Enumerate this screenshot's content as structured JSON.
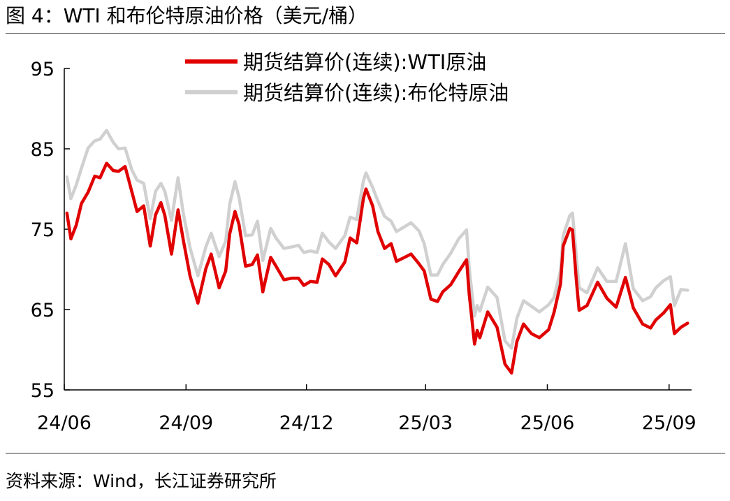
{
  "header": {
    "title": "图 4：WTI 和布伦特原油价格（美元/桶）"
  },
  "footer": {
    "source": "资料来源：Wind，长江证券研究所"
  },
  "chart_data": {
    "type": "line",
    "title": "",
    "xlabel": "",
    "ylabel": "",
    "ylim": [
      55,
      95
    ],
    "yticks": [
      55,
      65,
      75,
      85,
      95
    ],
    "xlim": [
      "2024-06-01",
      "2025-09-18"
    ],
    "xticks": [
      {
        "date": "2024-06-01",
        "label": "24/06"
      },
      {
        "date": "2024-09-01",
        "label": "24/09"
      },
      {
        "date": "2024-12-01",
        "label": "24/12"
      },
      {
        "date": "2025-03-01",
        "label": "25/03"
      },
      {
        "date": "2025-06-01",
        "label": "25/06"
      },
      {
        "date": "2025-09-01",
        "label": "25/09"
      }
    ],
    "grid": false,
    "legend_position": "top-center",
    "series": [
      {
        "name": "期货结算价(连续):WTI原油",
        "color": "#e00000",
        "points": [
          [
            "2024-06-03",
            77.0
          ],
          [
            "2024-06-06",
            73.8
          ],
          [
            "2024-06-10",
            75.5
          ],
          [
            "2024-06-14",
            78.2
          ],
          [
            "2024-06-19",
            79.6
          ],
          [
            "2024-06-24",
            81.6
          ],
          [
            "2024-06-28",
            81.4
          ],
          [
            "2024-07-03",
            83.2
          ],
          [
            "2024-07-08",
            82.3
          ],
          [
            "2024-07-12",
            82.2
          ],
          [
            "2024-07-17",
            82.8
          ],
          [
            "2024-07-22",
            79.7
          ],
          [
            "2024-07-26",
            77.2
          ],
          [
            "2024-07-31",
            77.9
          ],
          [
            "2024-08-05",
            72.9
          ],
          [
            "2024-08-09",
            76.8
          ],
          [
            "2024-08-13",
            78.3
          ],
          [
            "2024-08-16",
            76.7
          ],
          [
            "2024-08-21",
            71.9
          ],
          [
            "2024-08-26",
            77.4
          ],
          [
            "2024-08-30",
            73.6
          ],
          [
            "2024-09-04",
            69.2
          ],
          [
            "2024-09-10",
            65.8
          ],
          [
            "2024-09-16",
            70.1
          ],
          [
            "2024-09-20",
            71.9
          ],
          [
            "2024-09-26",
            67.7
          ],
          [
            "2024-10-01",
            69.8
          ],
          [
            "2024-10-04",
            74.4
          ],
          [
            "2024-10-08",
            77.2
          ],
          [
            "2024-10-11",
            75.6
          ],
          [
            "2024-10-16",
            70.4
          ],
          [
            "2024-10-21",
            70.6
          ],
          [
            "2024-10-25",
            71.8
          ],
          [
            "2024-10-29",
            67.2
          ],
          [
            "2024-11-04",
            71.5
          ],
          [
            "2024-11-08",
            70.4
          ],
          [
            "2024-11-14",
            68.7
          ],
          [
            "2024-11-20",
            68.9
          ],
          [
            "2024-11-25",
            68.9
          ],
          [
            "2024-11-29",
            68.0
          ],
          [
            "2024-12-04",
            68.5
          ],
          [
            "2024-12-09",
            68.4
          ],
          [
            "2024-12-13",
            71.3
          ],
          [
            "2024-12-18",
            70.6
          ],
          [
            "2024-12-23",
            69.2
          ],
          [
            "2024-12-30",
            70.9
          ],
          [
            "2025-01-03",
            73.9
          ],
          [
            "2025-01-08",
            73.3
          ],
          [
            "2025-01-13",
            78.8
          ],
          [
            "2025-01-15",
            80.0
          ],
          [
            "2025-01-20",
            77.9
          ],
          [
            "2025-01-24",
            74.7
          ],
          [
            "2025-01-29",
            72.6
          ],
          [
            "2025-02-03",
            73.2
          ],
          [
            "2025-02-07",
            71.0
          ],
          [
            "2025-02-12",
            71.4
          ],
          [
            "2025-02-18",
            71.9
          ],
          [
            "2025-02-24",
            70.7
          ],
          [
            "2025-02-28",
            69.8
          ],
          [
            "2025-03-05",
            66.3
          ],
          [
            "2025-03-10",
            66.0
          ],
          [
            "2025-03-14",
            67.2
          ],
          [
            "2025-03-20",
            68.1
          ],
          [
            "2025-03-26",
            69.7
          ],
          [
            "2025-04-01",
            71.2
          ],
          [
            "2025-04-03",
            66.9
          ],
          [
            "2025-04-07",
            60.7
          ],
          [
            "2025-04-09",
            62.4
          ],
          [
            "2025-04-11",
            61.5
          ],
          [
            "2025-04-17",
            64.7
          ],
          [
            "2025-04-24",
            62.8
          ],
          [
            "2025-04-30",
            58.2
          ],
          [
            "2025-05-05",
            57.1
          ],
          [
            "2025-05-09",
            61.0
          ],
          [
            "2025-05-14",
            63.2
          ],
          [
            "2025-05-20",
            62.0
          ],
          [
            "2025-05-26",
            61.5
          ],
          [
            "2025-06-02",
            62.5
          ],
          [
            "2025-06-06",
            64.6
          ],
          [
            "2025-06-11",
            68.2
          ],
          [
            "2025-06-13",
            72.9
          ],
          [
            "2025-06-18",
            75.1
          ],
          [
            "2025-06-20",
            74.9
          ],
          [
            "2025-06-23",
            68.5
          ],
          [
            "2025-06-25",
            64.9
          ],
          [
            "2025-07-01",
            65.5
          ],
          [
            "2025-07-09",
            68.4
          ],
          [
            "2025-07-16",
            66.4
          ],
          [
            "2025-07-23",
            65.3
          ],
          [
            "2025-07-30",
            69.0
          ],
          [
            "2025-08-05",
            65.2
          ],
          [
            "2025-08-12",
            63.2
          ],
          [
            "2025-08-18",
            62.7
          ],
          [
            "2025-08-22",
            63.7
          ],
          [
            "2025-08-28",
            64.6
          ],
          [
            "2025-09-02",
            65.6
          ],
          [
            "2025-09-05",
            62.0
          ],
          [
            "2025-09-10",
            62.8
          ],
          [
            "2025-09-15",
            63.3
          ]
        ]
      },
      {
        "name": "期货结算价(连续):布伦特原油",
        "color": "#d0d0d0",
        "points": [
          [
            "2024-06-03",
            81.5
          ],
          [
            "2024-06-06",
            78.8
          ],
          [
            "2024-06-10",
            80.5
          ],
          [
            "2024-06-14",
            82.6
          ],
          [
            "2024-06-19",
            85.1
          ],
          [
            "2024-06-24",
            86.0
          ],
          [
            "2024-06-28",
            86.2
          ],
          [
            "2024-07-03",
            87.3
          ],
          [
            "2024-07-08",
            85.8
          ],
          [
            "2024-07-12",
            85.0
          ],
          [
            "2024-07-17",
            85.1
          ],
          [
            "2024-07-22",
            82.4
          ],
          [
            "2024-07-26",
            81.1
          ],
          [
            "2024-07-31",
            80.7
          ],
          [
            "2024-08-05",
            76.3
          ],
          [
            "2024-08-09",
            79.7
          ],
          [
            "2024-08-13",
            80.7
          ],
          [
            "2024-08-16",
            79.7
          ],
          [
            "2024-08-21",
            76.1
          ],
          [
            "2024-08-26",
            81.4
          ],
          [
            "2024-08-30",
            76.9
          ],
          [
            "2024-09-04",
            72.7
          ],
          [
            "2024-09-10",
            69.2
          ],
          [
            "2024-09-16",
            72.8
          ],
          [
            "2024-09-20",
            74.5
          ],
          [
            "2024-09-26",
            71.6
          ],
          [
            "2024-10-01",
            73.5
          ],
          [
            "2024-10-04",
            78.1
          ],
          [
            "2024-10-08",
            80.9
          ],
          [
            "2024-10-11",
            79.0
          ],
          [
            "2024-10-16",
            74.2
          ],
          [
            "2024-10-21",
            74.3
          ],
          [
            "2024-10-25",
            76.0
          ],
          [
            "2024-10-29",
            71.1
          ],
          [
            "2024-11-04",
            75.1
          ],
          [
            "2024-11-08",
            73.9
          ],
          [
            "2024-11-14",
            72.6
          ],
          [
            "2024-11-20",
            72.8
          ],
          [
            "2024-11-25",
            73.0
          ],
          [
            "2024-11-29",
            72.1
          ],
          [
            "2024-12-04",
            72.3
          ],
          [
            "2024-12-09",
            72.1
          ],
          [
            "2024-12-13",
            74.5
          ],
          [
            "2024-12-18",
            73.4
          ],
          [
            "2024-12-23",
            72.6
          ],
          [
            "2024-12-30",
            74.2
          ],
          [
            "2025-01-03",
            76.5
          ],
          [
            "2025-01-08",
            76.2
          ],
          [
            "2025-01-13",
            81.0
          ],
          [
            "2025-01-15",
            82.0
          ],
          [
            "2025-01-20",
            80.2
          ],
          [
            "2025-01-24",
            78.5
          ],
          [
            "2025-01-29",
            76.6
          ],
          [
            "2025-02-03",
            76.0
          ],
          [
            "2025-02-07",
            74.7
          ],
          [
            "2025-02-12",
            75.2
          ],
          [
            "2025-02-18",
            75.8
          ],
          [
            "2025-02-24",
            74.8
          ],
          [
            "2025-02-28",
            73.2
          ],
          [
            "2025-03-05",
            69.3
          ],
          [
            "2025-03-10",
            69.3
          ],
          [
            "2025-03-14",
            70.6
          ],
          [
            "2025-03-20",
            72.0
          ],
          [
            "2025-03-26",
            73.8
          ],
          [
            "2025-04-01",
            74.9
          ],
          [
            "2025-04-03",
            70.1
          ],
          [
            "2025-04-07",
            64.2
          ],
          [
            "2025-04-09",
            65.5
          ],
          [
            "2025-04-11",
            64.8
          ],
          [
            "2025-04-17",
            67.8
          ],
          [
            "2025-04-24",
            66.5
          ],
          [
            "2025-04-30",
            61.1
          ],
          [
            "2025-05-05",
            60.2
          ],
          [
            "2025-05-09",
            63.9
          ],
          [
            "2025-05-14",
            66.1
          ],
          [
            "2025-05-20",
            65.4
          ],
          [
            "2025-05-26",
            64.7
          ],
          [
            "2025-06-02",
            65.6
          ],
          [
            "2025-06-06",
            66.5
          ],
          [
            "2025-06-11",
            69.8
          ],
          [
            "2025-06-13",
            74.2
          ],
          [
            "2025-06-18",
            76.7
          ],
          [
            "2025-06-20",
            77.0
          ],
          [
            "2025-06-23",
            71.5
          ],
          [
            "2025-06-25",
            67.7
          ],
          [
            "2025-07-01",
            67.1
          ],
          [
            "2025-07-09",
            70.2
          ],
          [
            "2025-07-16",
            68.5
          ],
          [
            "2025-07-23",
            68.5
          ],
          [
            "2025-07-30",
            73.2
          ],
          [
            "2025-08-05",
            67.6
          ],
          [
            "2025-08-12",
            66.1
          ],
          [
            "2025-08-18",
            66.6
          ],
          [
            "2025-08-22",
            67.7
          ],
          [
            "2025-08-28",
            68.6
          ],
          [
            "2025-09-02",
            69.1
          ],
          [
            "2025-09-05",
            65.5
          ],
          [
            "2025-09-10",
            67.5
          ],
          [
            "2025-09-15",
            67.4
          ]
        ]
      }
    ]
  }
}
